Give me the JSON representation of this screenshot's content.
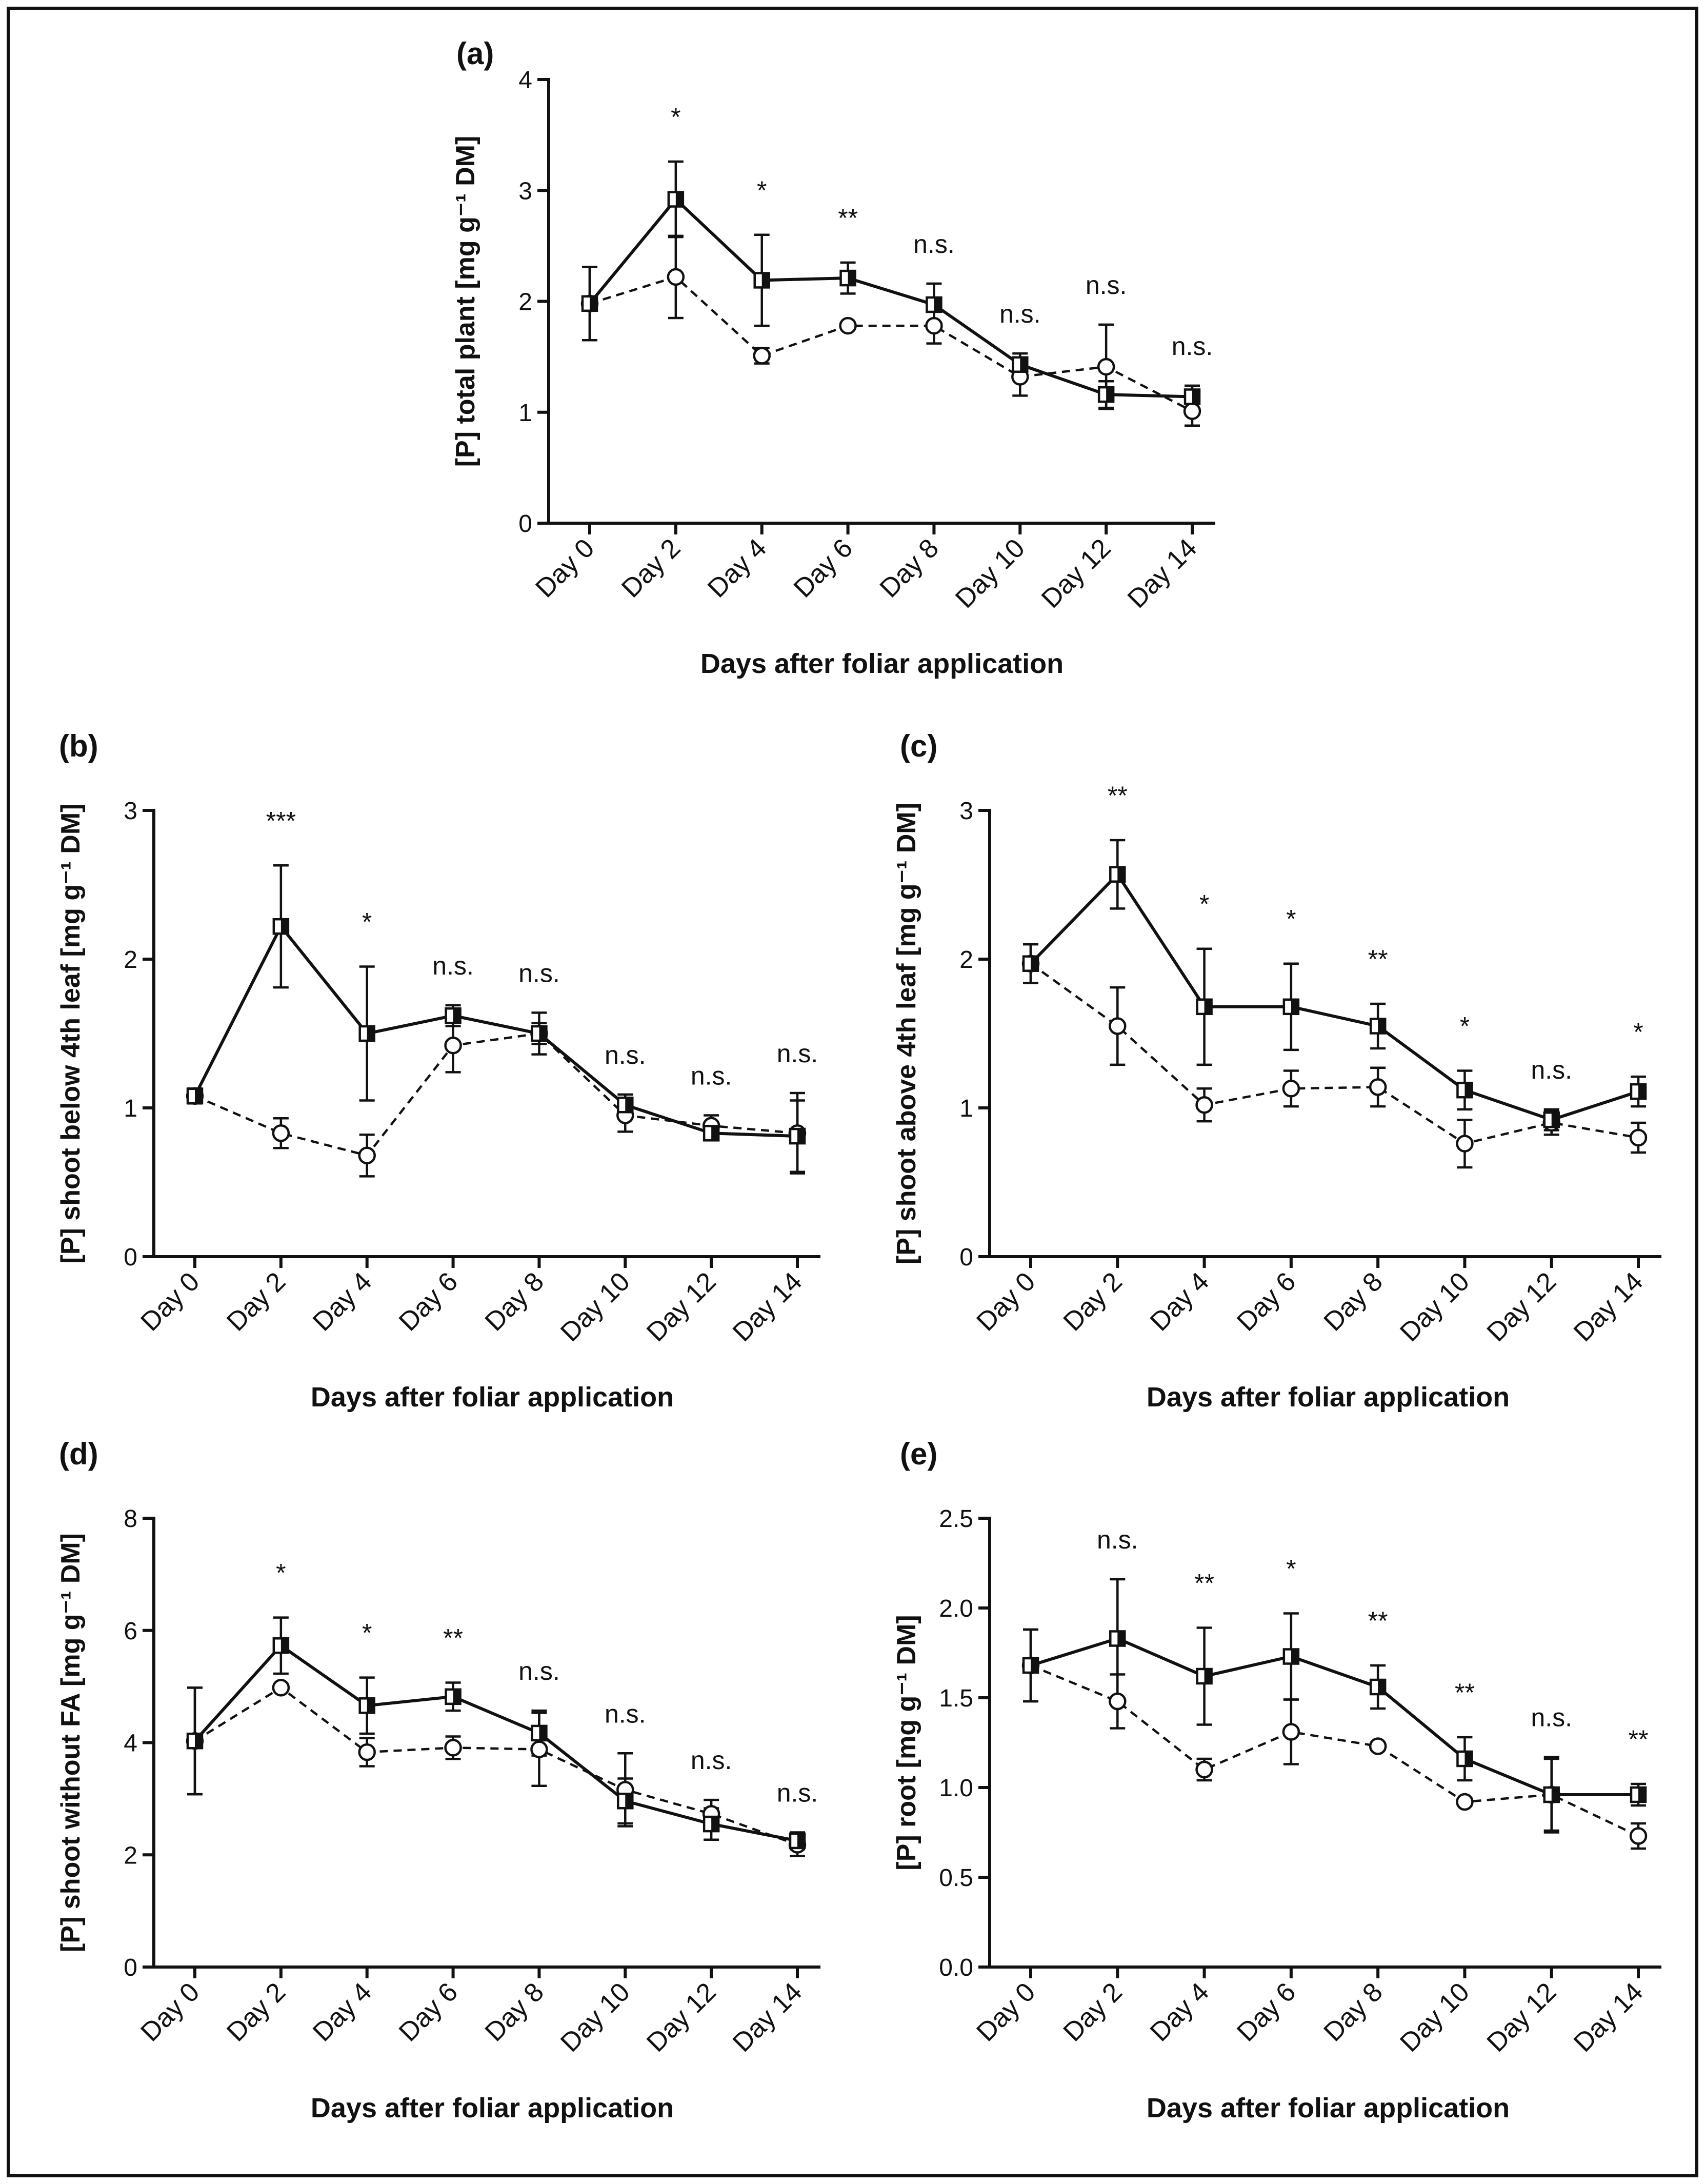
{
  "chart_data": [
    {
      "panel": "(a)",
      "type": "line",
      "ylabel": "[P] total plant [mg g⁻¹ DM]",
      "xlabel": "Days after foliar application",
      "categories": [
        "Day 0",
        "Day 2",
        "Day 4",
        "Day 6",
        "Day 8",
        "Day 10",
        "Day 12",
        "Day 14"
      ],
      "ylim": [
        0,
        4
      ],
      "yticks": [
        "0",
        "1",
        "2",
        "3",
        "4"
      ],
      "series": [
        {
          "marker": "half-filled-square",
          "line": "solid",
          "values": [
            1.98,
            2.92,
            2.19,
            2.21,
            1.97,
            1.43,
            1.16,
            1.14
          ],
          "errors": [
            0.33,
            0.34,
            0.41,
            0.14,
            0.19,
            0.1,
            0.12,
            0.1
          ]
        },
        {
          "marker": "open-circle",
          "line": "dashed",
          "values": [
            1.98,
            2.22,
            1.51,
            1.78,
            1.78,
            1.32,
            1.41,
            1.01
          ],
          "errors": [
            0.33,
            0.37,
            0.07,
            0.03,
            0.16,
            0.17,
            0.38,
            0.13
          ]
        }
      ],
      "annotations": [
        "",
        "*",
        "*",
        "**",
        "n.s.",
        "n.s.",
        "n.s.",
        "n.s."
      ]
    },
    {
      "panel": "(b)",
      "type": "line",
      "ylabel": "[P] shoot below 4th leaf [mg g⁻¹ DM]",
      "xlabel": "Days after foliar application",
      "categories": [
        "Day 0",
        "Day 2",
        "Day 4",
        "Day 6",
        "Day 8",
        "Day 10",
        "Day 12",
        "Day 14"
      ],
      "ylim": [
        0,
        3
      ],
      "yticks": [
        "0",
        "1",
        "2",
        "3"
      ],
      "series": [
        {
          "marker": "half-filled-square",
          "line": "solid",
          "values": [
            1.08,
            2.22,
            1.5,
            1.62,
            1.5,
            1.02,
            0.83,
            0.81
          ],
          "errors": [
            0.05,
            0.41,
            0.45,
            0.07,
            0.07,
            0.07,
            0.04,
            0.24
          ]
        },
        {
          "marker": "open-circle",
          "line": "dashed",
          "values": [
            1.08,
            0.83,
            0.68,
            1.42,
            1.5,
            0.95,
            0.88,
            0.83
          ],
          "errors": [
            0.05,
            0.1,
            0.14,
            0.18,
            0.14,
            0.11,
            0.07,
            0.27
          ]
        }
      ],
      "annotations": [
        "",
        "***",
        "*",
        "n.s.",
        "n.s.",
        "n.s.",
        "n.s.",
        "n.s."
      ]
    },
    {
      "panel": "(c)",
      "type": "line",
      "ylabel": "[P] shoot above 4th leaf [mg g⁻¹ DM]",
      "xlabel": "Days after foliar application",
      "categories": [
        "Day 0",
        "Day 2",
        "Day 4",
        "Day 6",
        "Day 8",
        "Day 10",
        "Day 12",
        "Day 14"
      ],
      "ylim": [
        0,
        3
      ],
      "yticks": [
        "0",
        "1",
        "2",
        "3"
      ],
      "series": [
        {
          "marker": "half-filled-square",
          "line": "solid",
          "values": [
            1.97,
            2.57,
            1.68,
            1.68,
            1.55,
            1.12,
            0.92,
            1.11
          ],
          "errors": [
            0.13,
            0.23,
            0.39,
            0.29,
            0.15,
            0.13,
            0.07,
            0.1
          ]
        },
        {
          "marker": "open-circle",
          "line": "dashed",
          "values": [
            1.97,
            1.55,
            1.02,
            1.13,
            1.14,
            0.76,
            0.9,
            0.8
          ],
          "errors": [
            0.13,
            0.26,
            0.11,
            0.12,
            0.13,
            0.16,
            0.08,
            0.1
          ]
        }
      ],
      "annotations": [
        "",
        "**",
        "*",
        "*",
        "**",
        "*",
        "n.s.",
        "*"
      ]
    },
    {
      "panel": "(d)",
      "type": "line",
      "ylabel": "[P] shoot without FA [mg g⁻¹ DM]",
      "xlabel": "Days after foliar application",
      "categories": [
        "Day 0",
        "Day 2",
        "Day 4",
        "Day 6",
        "Day 8",
        "Day 10",
        "Day 12",
        "Day 14"
      ],
      "ylim": [
        0,
        8
      ],
      "yticks": [
        "0",
        "2",
        "4",
        "6",
        "8"
      ],
      "series": [
        {
          "marker": "half-filled-square",
          "line": "solid",
          "values": [
            4.03,
            5.73,
            4.66,
            4.82,
            4.17,
            2.96,
            2.55,
            2.25
          ],
          "errors": [
            0.95,
            0.5,
            0.5,
            0.25,
            0.4,
            0.4,
            0.28,
            0.15
          ]
        },
        {
          "marker": "open-circle",
          "line": "dashed",
          "values": [
            4.03,
            4.98,
            3.83,
            3.91,
            3.88,
            3.16,
            2.73,
            2.18
          ],
          "errors": [
            0.95,
            0.05,
            0.25,
            0.2,
            0.65,
            0.65,
            0.25,
            0.2
          ]
        }
      ],
      "annotations": [
        "",
        "*",
        "*",
        "**",
        "n.s.",
        "n.s.",
        "n.s.",
        "n.s."
      ]
    },
    {
      "panel": "(e)",
      "type": "line",
      "ylabel": "[P] root [mg g⁻¹ DM]",
      "xlabel": "Days after foliar application",
      "categories": [
        "Day 0",
        "Day 2",
        "Day 4",
        "Day 6",
        "Day 8",
        "Day 10",
        "Day 12",
        "Day 14"
      ],
      "ylim": [
        0,
        2.5
      ],
      "yticks": [
        "0.0",
        "0.5",
        "1.0",
        "1.5",
        "2.0",
        "2.5"
      ],
      "series": [
        {
          "marker": "half-filled-square",
          "line": "solid",
          "values": [
            1.68,
            1.83,
            1.62,
            1.73,
            1.56,
            1.16,
            0.96,
            0.96
          ],
          "errors": [
            0.2,
            0.33,
            0.27,
            0.24,
            0.12,
            0.12,
            0.21,
            0.06
          ]
        },
        {
          "marker": "open-circle",
          "line": "dashed",
          "values": [
            1.68,
            1.48,
            1.1,
            1.31,
            1.23,
            0.92,
            0.96,
            0.73
          ],
          "errors": [
            0.2,
            0.15,
            0.06,
            0.18,
            0.02,
            0.02,
            0.2,
            0.07
          ]
        }
      ],
      "annotations": [
        "",
        "n.s.",
        "**",
        "*",
        "**",
        "**",
        "n.s.",
        "**"
      ]
    }
  ]
}
